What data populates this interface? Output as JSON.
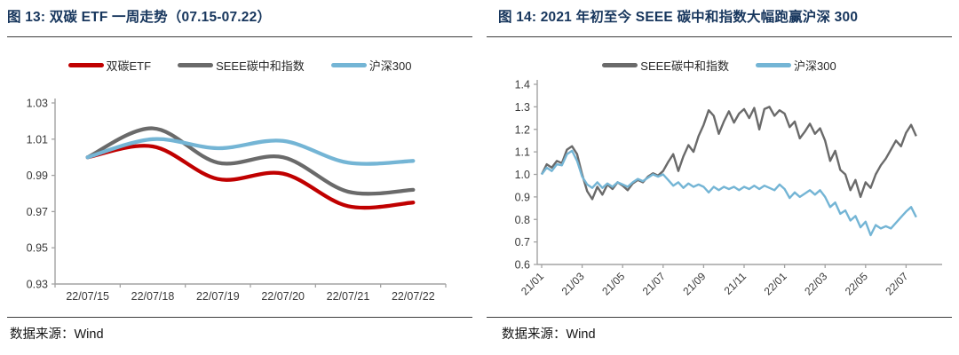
{
  "accent_colors": {
    "title_navy": "#17365d",
    "red": "#c00000",
    "gray": "#6a6a6a",
    "blue": "#74b5d5",
    "axis": "#a3a3a3",
    "tick_label": "#3a3a3a"
  },
  "chart_data": [
    {
      "type": "line",
      "title": "图 13:  双碳 ETF 一周走势（07.15-07.22）",
      "source": "数据来源：Wind",
      "legend_position": "top",
      "grid": false,
      "smooth": true,
      "ylim": [
        0.93,
        1.03
      ],
      "ystep": 0.02,
      "y_decimals": 2,
      "categories": [
        "22/07/15",
        "22/07/18",
        "22/07/19",
        "22/07/20",
        "22/07/21",
        "22/07/22"
      ],
      "series": [
        {
          "name": "双碳ETF",
          "color": "#c00000",
          "values": [
            1.0,
            1.006,
            0.988,
            0.991,
            0.973,
            0.975
          ]
        },
        {
          "name": "SEEE碳中和指数",
          "color": "#6a6a6a",
          "values": [
            1.0,
            1.016,
            0.997,
            1.0,
            0.981,
            0.982
          ]
        },
        {
          "name": "沪深300",
          "color": "#74b5d5",
          "values": [
            1.0,
            1.01,
            1.005,
            1.009,
            0.997,
            0.998
          ]
        }
      ]
    },
    {
      "type": "line",
      "title": "图 14:  2021 年初至今 SEEE 碳中和指数大幅跑赢沪深 300",
      "source": "数据来源：Wind",
      "legend_position": "top",
      "grid": false,
      "smooth": false,
      "ylim": [
        0.6,
        1.4
      ],
      "ystep": 0.1,
      "y_decimals": 1,
      "x_tick_labels": [
        "21/01",
        "21/03",
        "21/05",
        "21/07",
        "21/09",
        "21/11",
        "22/01",
        "22/03",
        "22/05",
        "22/07"
      ],
      "x_tick_rotation": -45,
      "x_months_per_tick": 2,
      "x_step_months": 0.25,
      "series": [
        {
          "name": "SEEE碳中和指数",
          "color": "#6a6a6a",
          "values": [
            1.0,
            1.045,
            1.03,
            1.06,
            1.05,
            1.11,
            1.125,
            1.09,
            1.0,
            0.925,
            0.89,
            0.945,
            0.91,
            0.955,
            0.935,
            0.965,
            0.95,
            0.93,
            0.96,
            0.975,
            0.965,
            0.99,
            1.005,
            0.995,
            1.015,
            1.055,
            1.09,
            1.015,
            1.08,
            1.13,
            1.1,
            1.17,
            1.22,
            1.285,
            1.26,
            1.18,
            1.235,
            1.28,
            1.23,
            1.27,
            1.29,
            1.25,
            1.295,
            1.2,
            1.29,
            1.3,
            1.26,
            1.285,
            1.27,
            1.21,
            1.235,
            1.16,
            1.19,
            1.225,
            1.18,
            1.205,
            1.15,
            1.06,
            1.105,
            1.02,
            1.0,
            0.93,
            0.975,
            0.9,
            0.965,
            0.94,
            1.0,
            1.04,
            1.07,
            1.11,
            1.15,
            1.125,
            1.185,
            1.22,
            1.17
          ]
        },
        {
          "name": "沪深300",
          "color": "#74b5d5",
          "values": [
            1.0,
            1.03,
            1.015,
            1.045,
            1.04,
            1.09,
            1.105,
            1.06,
            0.99,
            0.955,
            0.94,
            0.965,
            0.94,
            0.96,
            0.945,
            0.965,
            0.955,
            0.945,
            0.965,
            0.98,
            0.97,
            0.985,
            1.0,
            0.99,
            1.0,
            0.975,
            0.95,
            0.965,
            0.94,
            0.96,
            0.945,
            0.955,
            0.945,
            0.92,
            0.945,
            0.93,
            0.945,
            0.935,
            0.945,
            0.93,
            0.945,
            0.935,
            0.95,
            0.935,
            0.95,
            0.94,
            0.93,
            0.955,
            0.935,
            0.895,
            0.92,
            0.9,
            0.915,
            0.93,
            0.91,
            0.93,
            0.9,
            0.855,
            0.875,
            0.825,
            0.84,
            0.795,
            0.815,
            0.765,
            0.79,
            0.73,
            0.775,
            0.76,
            0.77,
            0.76,
            0.785,
            0.81,
            0.835,
            0.855,
            0.81
          ]
        }
      ]
    }
  ]
}
